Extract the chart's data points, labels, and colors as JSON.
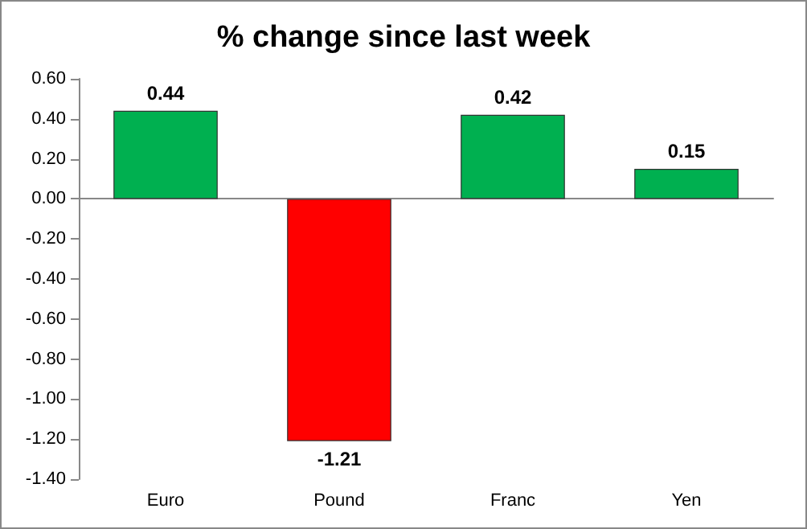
{
  "chart_data": {
    "type": "bar",
    "title": "% change since last week",
    "categories": [
      "Euro",
      "Pound",
      "Franc",
      "Yen"
    ],
    "values": [
      0.44,
      -1.21,
      0.42,
      0.15
    ],
    "colors": [
      "#00b050",
      "#ff0000",
      "#00b050",
      "#00b050"
    ],
    "ylim": [
      -1.4,
      0.6
    ],
    "yticks": [
      {
        "value": -1.4,
        "label": "-1.40"
      },
      {
        "value": -1.2,
        "label": "-1.20"
      },
      {
        "value": -1.0,
        "label": "-1.00"
      },
      {
        "value": -0.8,
        "label": "-0.80"
      },
      {
        "value": -0.6,
        "label": "-0.60"
      },
      {
        "value": -0.4,
        "label": "-0.40"
      },
      {
        "value": -0.2,
        "label": "-0.20"
      },
      {
        "value": 0,
        "label": "0.00"
      },
      {
        "value": 0.2,
        "label": "0.20"
      },
      {
        "value": 0.4,
        "label": "0.40"
      },
      {
        "value": 0.6,
        "label": "0.60"
      }
    ],
    "data_labels": true
  }
}
